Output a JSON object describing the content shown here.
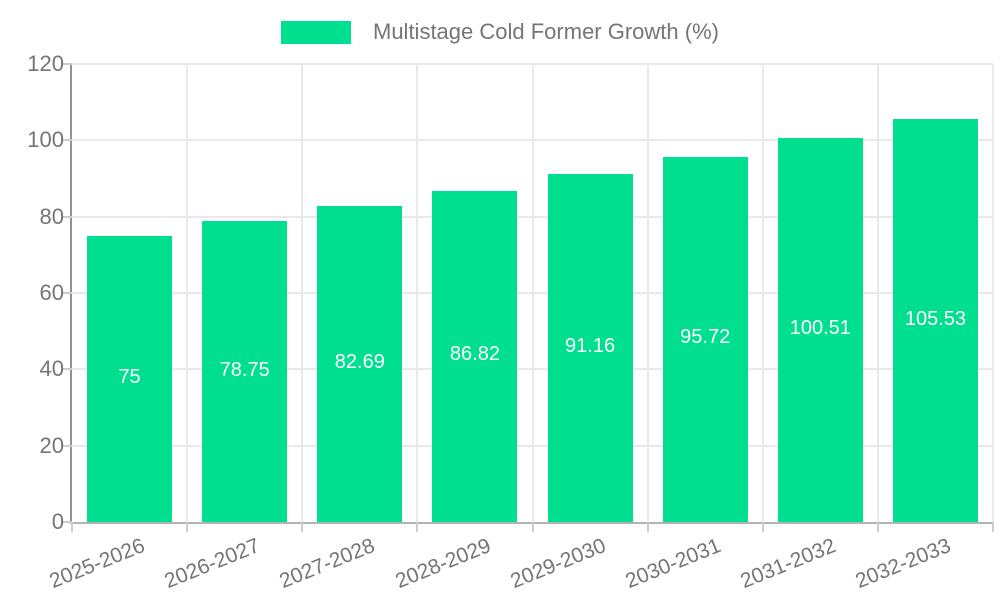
{
  "legend": {
    "label": "Multistage Cold Former Growth (%)"
  },
  "colors": {
    "bar": "#00df8f",
    "grid": "#e9e9e9",
    "axis": "#919191",
    "tick_label": "#757575",
    "value_label": "#ffffff"
  },
  "chart_data": {
    "type": "bar",
    "title": "Multistage Cold Former Growth (%)",
    "categories": [
      "2025-2026",
      "2026-2027",
      "2027-2028",
      "2028-2029",
      "2029-2030",
      "2030-2031",
      "2031-2032",
      "2032-2033"
    ],
    "values": [
      75,
      78.75,
      82.69,
      86.82,
      91.16,
      95.72,
      100.51,
      105.53
    ],
    "value_labels": [
      "75",
      "78.75",
      "82.69",
      "86.82",
      "91.16",
      "95.72",
      "100.51",
      "105.53"
    ],
    "xlabel": "",
    "ylabel": "",
    "ylim": [
      0,
      120
    ],
    "yticks": [
      0,
      20,
      40,
      60,
      80,
      100,
      120
    ],
    "grid": true,
    "legend_position": "top",
    "bar_label_position": "inside-middle"
  }
}
